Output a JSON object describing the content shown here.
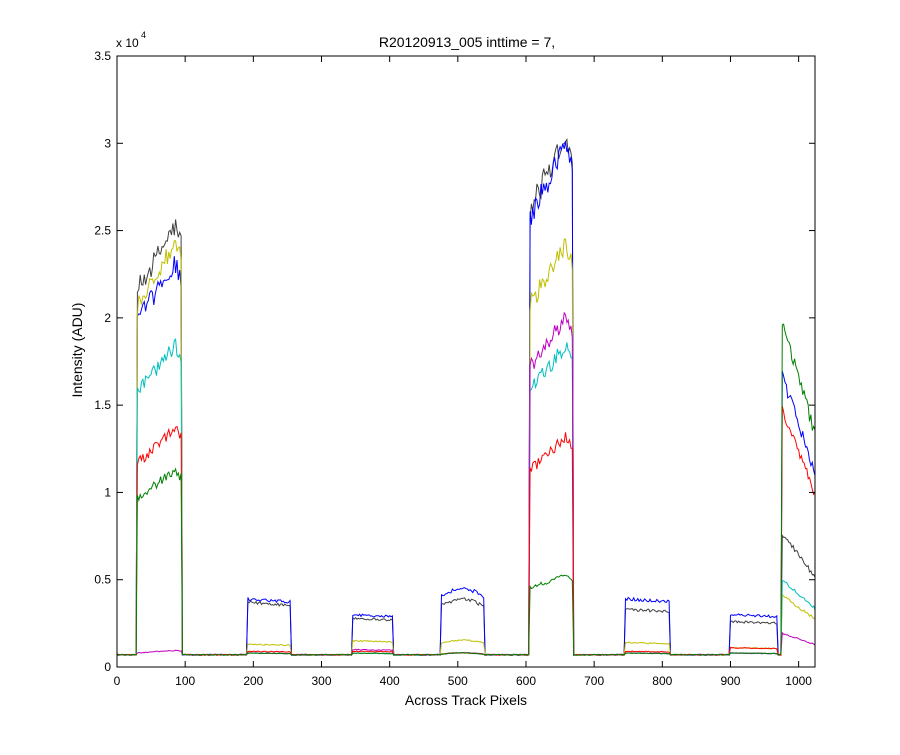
{
  "chart_data": {
    "type": "line",
    "title": "R20120913_005 inttime = 7,",
    "xlabel": "Across Track Pixels",
    "ylabel": "Intensity (ADU)",
    "y_multiplier_label": "x 10",
    "y_multiplier_exponent": "4",
    "xlim": [
      0,
      1024
    ],
    "ylim": [
      0,
      35000
    ],
    "xticks": [
      0,
      100,
      200,
      300,
      400,
      500,
      600,
      700,
      800,
      900,
      1000
    ],
    "xtick_labels": [
      "0",
      "100",
      "200",
      "300",
      "400",
      "500",
      "600",
      "700",
      "800",
      "900",
      "1000"
    ],
    "yticks": [
      0,
      5000,
      10000,
      15000,
      20000,
      25000,
      30000,
      35000
    ],
    "ytick_labels": [
      "0",
      "0.5",
      "1",
      "1.5",
      "2",
      "2.5",
      "3",
      "3.5"
    ],
    "grid": false,
    "legend": "none",
    "baseline": 700,
    "segments": [
      {
        "start": 30,
        "end": 95,
        "shape": "rise"
      },
      {
        "start": 192,
        "end": 255,
        "shape": "flat"
      },
      {
        "start": 345,
        "end": 405,
        "shape": "flat"
      },
      {
        "start": 475,
        "end": 538,
        "shape": "hump"
      },
      {
        "start": 605,
        "end": 668,
        "shape": "rise"
      },
      {
        "start": 745,
        "end": 810,
        "shape": "flat"
      },
      {
        "start": 900,
        "end": 968,
        "shape": "flat"
      },
      {
        "start": 976,
        "end": 1024,
        "shape": "decay"
      }
    ],
    "series": [
      {
        "color": "#404040",
        "levels": [
          24000,
          3700,
          2800,
          3800,
          29000,
          3300,
          2600,
          6000
        ]
      },
      {
        "color": "#0000ff",
        "levels": [
          22000,
          3900,
          3000,
          4400,
          28500,
          3900,
          3000,
          13000
        ]
      },
      {
        "color": "#bfbf00",
        "levels": [
          23000,
          1300,
          1500,
          1500,
          23000,
          1400,
          1100,
          3200
        ]
      },
      {
        "color": "#00bfbf",
        "levels": [
          17500,
          800,
          800,
          800,
          17500,
          800,
          800,
          3900
        ]
      },
      {
        "color": "#bf00bf",
        "levels": [
          900,
          800,
          1000,
          800,
          19000,
          800,
          800,
          1500
        ]
      },
      {
        "color": "#ff0000",
        "levels": [
          13000,
          900,
          900,
          800,
          12500,
          900,
          1100,
          11500
        ]
      },
      {
        "color": "#007f00",
        "levels": [
          10700,
          800,
          800,
          800,
          5000,
          800,
          800,
          15500
        ]
      }
    ]
  }
}
